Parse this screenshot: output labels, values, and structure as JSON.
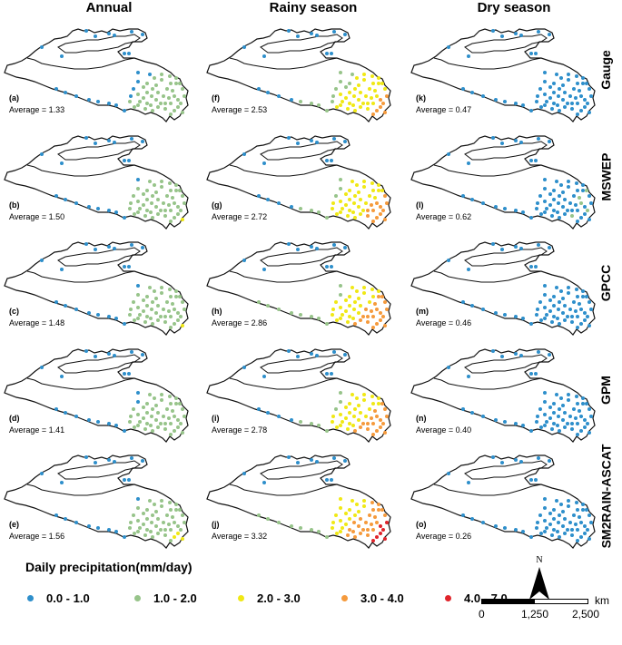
{
  "columns": [
    "Annual",
    "Rainy season",
    "Dry season"
  ],
  "rows": [
    "Gauge",
    "MSWEP",
    "GPCC",
    "GPM",
    "SM2RAIN-ASCAT"
  ],
  "panels": [
    [
      {
        "letter": "(a)",
        "average": "Average = 1.33"
      },
      {
        "letter": "(f)",
        "average": "Average =  2.53"
      },
      {
        "letter": "(k)",
        "average": "Average = 0.47"
      }
    ],
    [
      {
        "letter": "(b)",
        "average": "Average = 1.50"
      },
      {
        "letter": "(g)",
        "average": "Average = 2.72"
      },
      {
        "letter": "(l)",
        "average": "Average = 0.62"
      }
    ],
    [
      {
        "letter": "(c)",
        "average": "Average = 1.48"
      },
      {
        "letter": "(h)",
        "average": "Average = 2.86"
      },
      {
        "letter": "(m)",
        "average": "Average = 0.46"
      }
    ],
    [
      {
        "letter": "(d)",
        "average": "Average = 1.41"
      },
      {
        "letter": "(i)",
        "average": "Average = 2.78"
      },
      {
        "letter": "(n)",
        "average": "Average = 0.40"
      }
    ],
    [
      {
        "letter": "(e)",
        "average": "Average = 1.56"
      },
      {
        "letter": "(j)",
        "average": "Average = 3.32"
      },
      {
        "letter": "(o)",
        "average": "Average = 0.26"
      }
    ]
  ],
  "legend": {
    "title": "Daily precipitation(mm/day)",
    "classes": [
      {
        "label": "0.0 - 1.0",
        "color": "#2e8fcb"
      },
      {
        "label": "1.0 - 2.0",
        "color": "#97c48a"
      },
      {
        "label": "2.0 - 3.0",
        "color": "#f0e815"
      },
      {
        "label": "3.0 - 4.0",
        "color": "#f59a3c"
      },
      {
        "label": "4.0 - 7.0",
        "color": "#e0242b"
      }
    ]
  },
  "north_arrow": {
    "label": "N",
    "icon": "north-arrow-icon"
  },
  "scale_bar": {
    "unit": "km",
    "ticks": [
      "0",
      "1,250",
      "2,500"
    ]
  }
}
